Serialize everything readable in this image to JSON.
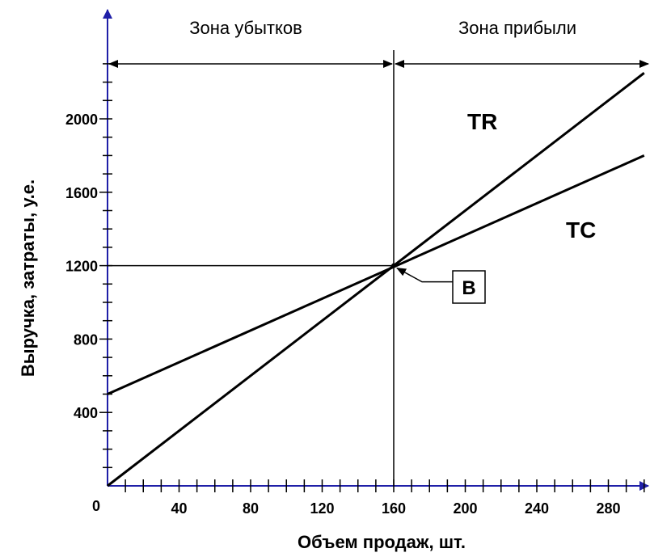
{
  "chart_data": {
    "type": "line",
    "title": "",
    "xlabel": "Объем продаж, шт.",
    "ylabel": "Выручка, затраты, у.е.",
    "xlim": [
      0,
      300
    ],
    "ylim": [
      0,
      2400
    ],
    "x_ticks": [
      40,
      80,
      120,
      160,
      200,
      240,
      280
    ],
    "x_tick_labels": [
      "40",
      "80",
      "120",
      "160",
      "200",
      "240",
      "280"
    ],
    "y_ticks": [
      400,
      800,
      1200,
      1600,
      2000
    ],
    "y_tick_labels": [
      "400",
      "800",
      "1200",
      "1600",
      "2000"
    ],
    "origin_label": "0",
    "grid": false,
    "series": [
      {
        "name": "TR",
        "x": [
          0,
          300
        ],
        "y": [
          0,
          2250
        ]
      },
      {
        "name": "TC",
        "x": [
          0,
          300
        ],
        "y": [
          500,
          1800
        ]
      }
    ],
    "break_even": {
      "label": "B",
      "x": 160,
      "y": 1200
    },
    "zones": {
      "loss": "Зона убытков",
      "profit": "Зона прибыли"
    }
  }
}
